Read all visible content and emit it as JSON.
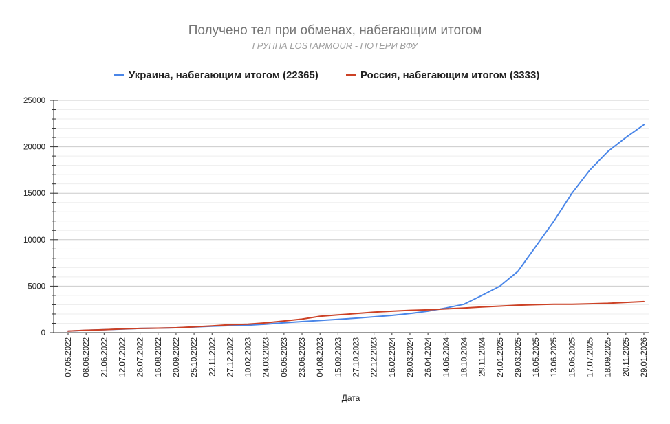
{
  "chart_data": {
    "type": "line",
    "title": "Получено тел при обменах, набегающим итогом",
    "subtitle": "ГРУППА LOSTARMOUR - ПОТЕРИ ВФУ",
    "xlabel": "Дата",
    "ylabel": "",
    "ylim": [
      0,
      25000
    ],
    "yticks": [
      0,
      5000,
      10000,
      15000,
      20000,
      25000
    ],
    "grid": true,
    "legend_position": "top",
    "categories": [
      "07.05.2022",
      "08.06.2022",
      "21.06.2022",
      "12.07.2022",
      "26.07.2022",
      "16.08.2022",
      "20.09.2022",
      "25.10.2022",
      "22.11.2022",
      "27.12.2022",
      "10.02.2023",
      "24.03.2023",
      "05.05.2023",
      "23.06.2023",
      "04.08.2023",
      "15.09.2023",
      "27.10.2023",
      "22.12.2023",
      "16.02.2024",
      "29.03.2024",
      "26.04.2024",
      "14.06.2024",
      "18.10.2024",
      "29.11.2024",
      "24.01.2025",
      "29.03.2025",
      "16.05.2025",
      "13.06.2025",
      "15.06.2025",
      "17.07.2025",
      "18.09.2025",
      "20.11.2025",
      "29.01.2026"
    ],
    "series": [
      {
        "name": "Украина, набегающим итогом (22365)",
        "color": "#4a86e8",
        "values": [
          160,
          250,
          320,
          380,
          450,
          480,
          520,
          600,
          680,
          750,
          800,
          900,
          1050,
          1180,
          1300,
          1420,
          1550,
          1700,
          1850,
          2050,
          2300,
          2650,
          3050,
          4000,
          5000,
          6600,
          9300,
          12000,
          15000,
          17500,
          19500,
          21000,
          22365
        ]
      },
      {
        "name": "Россия, набегающим итогом (3333)",
        "color": "#cc4125",
        "values": [
          160,
          260,
          320,
          400,
          450,
          480,
          520,
          620,
          720,
          850,
          900,
          1050,
          1250,
          1450,
          1750,
          1900,
          2050,
          2200,
          2300,
          2400,
          2450,
          2550,
          2650,
          2750,
          2850,
          2950,
          3000,
          3050,
          3050,
          3100,
          3150,
          3250,
          3333
        ]
      }
    ]
  }
}
